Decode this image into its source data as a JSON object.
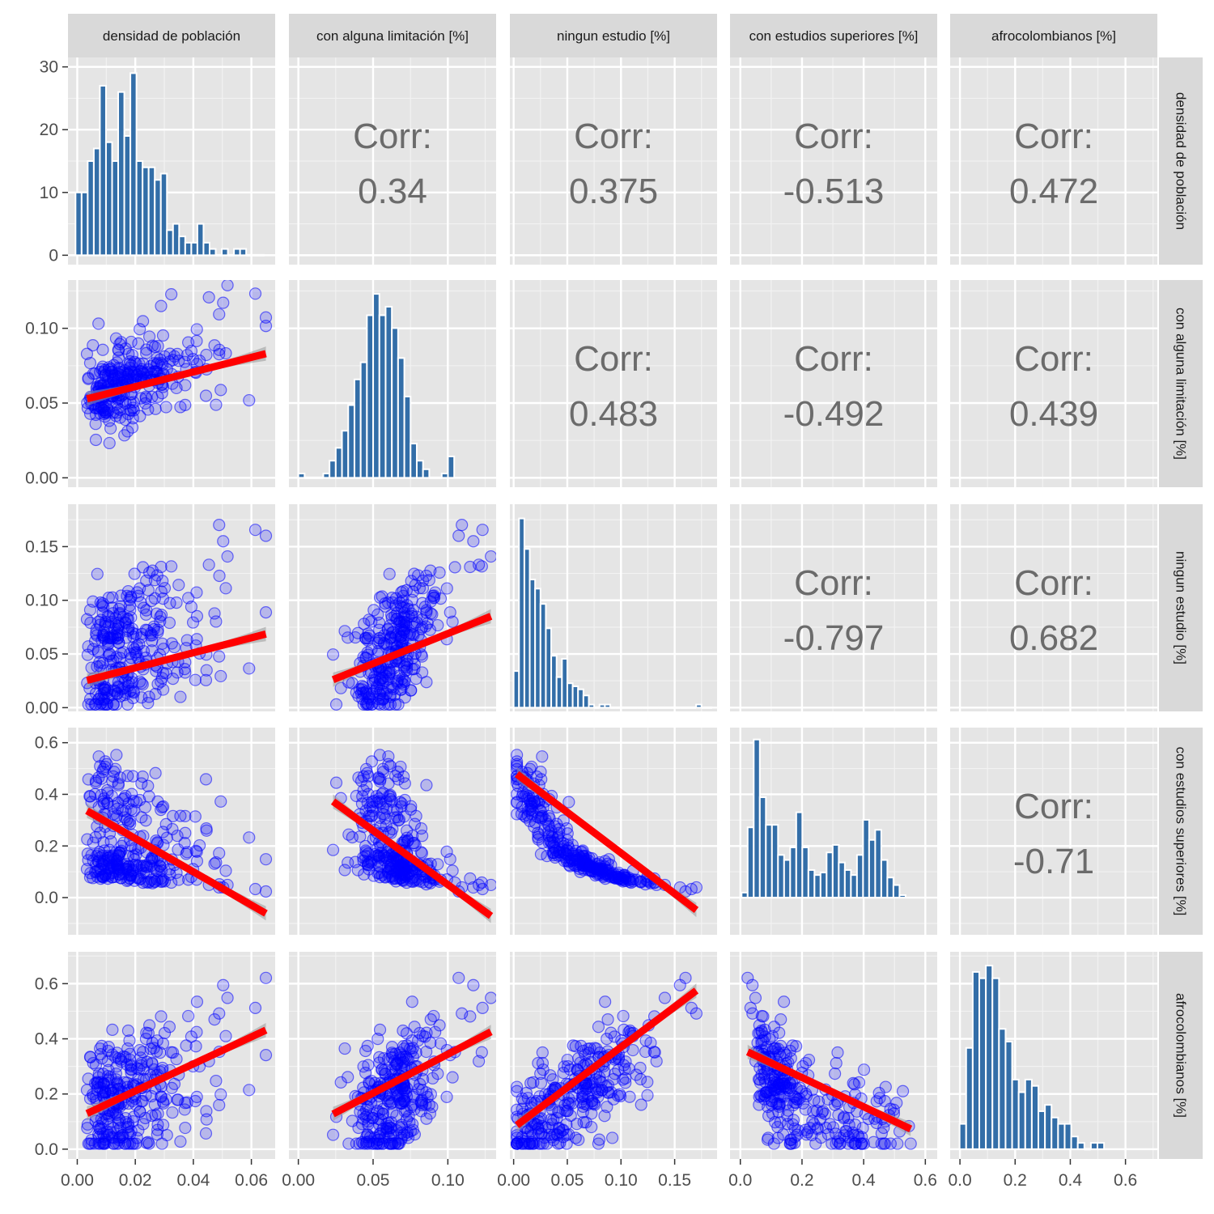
{
  "chart_data": {
    "type": "scatter-matrix",
    "variables": [
      "densidad de población",
      "con alguna limitación [%]",
      "ningun estudio [%]",
      "con estudios superiores [%]",
      "afrocolombianos [%]"
    ],
    "corr_label": "Corr:",
    "correlations": [
      {
        "row": 0,
        "col": 1,
        "value": "0.34"
      },
      {
        "row": 0,
        "col": 2,
        "value": "0.375"
      },
      {
        "row": 0,
        "col": 3,
        "value": "-0.513"
      },
      {
        "row": 0,
        "col": 4,
        "value": "0.472"
      },
      {
        "row": 1,
        "col": 2,
        "value": "0.483"
      },
      {
        "row": 1,
        "col": 3,
        "value": "-0.492"
      },
      {
        "row": 1,
        "col": 4,
        "value": "0.439"
      },
      {
        "row": 2,
        "col": 3,
        "value": "-0.797"
      },
      {
        "row": 2,
        "col": 4,
        "value": "0.682"
      },
      {
        "row": 3,
        "col": 4,
        "value": "-0.71"
      }
    ],
    "x_axes": [
      {
        "range": [
          -0.0032,
          0.0682
        ],
        "ticks": [
          0.0,
          0.02,
          0.04,
          0.06
        ],
        "tick_labels": [
          "0.00",
          "0.02",
          "0.04",
          "0.06"
        ]
      },
      {
        "range": [
          -0.0063,
          0.1323
        ],
        "ticks": [
          0.0,
          0.05,
          0.1
        ],
        "tick_labels": [
          "0.00",
          "0.05",
          "0.10"
        ]
      },
      {
        "range": [
          -0.0035,
          0.1895
        ],
        "ticks": [
          0.0,
          0.05,
          0.1,
          0.15
        ],
        "tick_labels": [
          "0.00",
          "0.05",
          "0.10",
          "0.15"
        ]
      },
      {
        "range": [
          -0.0335,
          0.6385
        ],
        "ticks": [
          0.0,
          0.2,
          0.4,
          0.6
        ],
        "tick_labels": [
          "0.0",
          "0.2",
          "0.4",
          "0.6"
        ]
      },
      {
        "range": [
          -0.0355,
          0.7155
        ],
        "ticks": [
          0.0,
          0.2,
          0.4,
          0.6
        ],
        "tick_labels": [
          "0.0",
          "0.2",
          "0.4",
          "0.6"
        ]
      }
    ],
    "y_axes": [
      {
        "range": [
          -1.5,
          31.5
        ],
        "ticks": [
          0,
          10,
          20,
          30
        ],
        "tick_labels": [
          "0",
          "10",
          "20",
          "30"
        ]
      },
      {
        "range": [
          -0.0063,
          0.1323
        ],
        "ticks": [
          0.0,
          0.05,
          0.1
        ],
        "tick_labels": [
          "0.00",
          "0.05",
          "0.10"
        ]
      },
      {
        "range": [
          -0.0035,
          0.1895
        ],
        "ticks": [
          0.0,
          0.05,
          0.1,
          0.15
        ],
        "tick_labels": [
          "0.00",
          "0.05",
          "0.10",
          "0.15"
        ]
      },
      {
        "range": [
          -0.144,
          0.6585
        ],
        "ticks": [
          0.0,
          0.2,
          0.4,
          0.6
        ],
        "tick_labels": [
          "0.0",
          "0.2",
          "0.4",
          "0.6"
        ]
      },
      {
        "range": [
          -0.0355,
          0.7155
        ],
        "ticks": [
          0.0,
          0.2,
          0.4,
          0.6
        ],
        "tick_labels": [
          "0.0",
          "0.2",
          "0.4",
          "0.6"
        ]
      }
    ],
    "histograms": [
      {
        "var": 0,
        "bin_start": -0.0006,
        "bin_width": 0.0021,
        "counts": [
          10,
          10,
          15,
          17,
          27,
          18,
          15,
          26,
          19,
          29,
          15,
          14,
          14,
          12,
          13,
          4,
          5,
          3,
          2,
          2,
          5,
          2,
          1,
          0,
          1,
          0,
          1,
          1,
          0,
          0,
          0
        ],
        "count_scale": 1
      },
      {
        "var": 1,
        "bin_start": 0.0,
        "bin_width": 0.00417,
        "counts": [
          1,
          0,
          0,
          0,
          1,
          4,
          7,
          11,
          17,
          23,
          27,
          38,
          43,
          38,
          40,
          35,
          28,
          19,
          8,
          4,
          2,
          0,
          0,
          1,
          5
        ],
        "count_scale": 1
      },
      {
        "var": 2,
        "bin_start": 0.0,
        "bin_width": 0.005,
        "counts": [
          12,
          62,
          52,
          42,
          39,
          34,
          26,
          17,
          10,
          16,
          8,
          7,
          6,
          4,
          1,
          0,
          1,
          1,
          0,
          0,
          0,
          0,
          0,
          0,
          0,
          0,
          0,
          0,
          0,
          0,
          0,
          0,
          0,
          0,
          1,
          0,
          0
        ],
        "count_scale": 1
      },
      {
        "var": 3,
        "bin_start": 0.004,
        "bin_width": 0.0197,
        "counts": [
          2,
          28,
          63,
          40,
          29,
          29,
          17,
          15,
          20,
          34,
          20,
          11,
          9,
          10,
          18,
          21,
          14,
          11,
          9,
          17,
          31,
          23,
          27,
          15,
          8,
          5,
          1
        ],
        "count_scale": 1
      },
      {
        "var": 4,
        "bin_start": -0.0013,
        "bin_width": 0.0238,
        "counts": [
          4,
          16,
          28,
          27,
          29,
          27,
          19,
          17,
          11,
          9,
          11,
          10,
          6,
          7,
          5,
          4,
          4,
          2,
          1,
          0,
          1,
          1
        ],
        "count_scale": 1
      }
    ],
    "fits": [
      {
        "row": 1,
        "col": 0,
        "intercept": 0.0512,
        "slope": 0.49
      },
      {
        "row": 2,
        "col": 0,
        "intercept": 0.0231,
        "slope": 0.7
      },
      {
        "row": 2,
        "col": 1,
        "intercept": 0.013,
        "slope": 0.56
      },
      {
        "row": 3,
        "col": 0,
        "intercept": 0.358,
        "slope": -6.45
      },
      {
        "row": 3,
        "col": 1,
        "intercept": 0.47,
        "slope": -4.2
      },
      {
        "row": 3,
        "col": 2,
        "intercept": 0.488,
        "slope": -3.15
      },
      {
        "row": 4,
        "col": 0,
        "intercept": 0.113,
        "slope": 4.9
      },
      {
        "row": 4,
        "col": 1,
        "intercept": 0.062,
        "slope": 2.82
      },
      {
        "row": 4,
        "col": 2,
        "intercept": 0.078,
        "slope": 2.92
      },
      {
        "row": 4,
        "col": 3,
        "intercept": 0.365,
        "slope": -0.528
      }
    ],
    "n_points": 300,
    "point_seed": 20240517,
    "grid": true,
    "colors": {
      "point": "#0000ff",
      "fit_line": "#ff0000",
      "confidence_band": "#999999",
      "histogram_bar": "#336ea8",
      "panel_background": "#e5e5e5",
      "strip_background": "#d9d9d9",
      "correlation_text": "#6b6b6b"
    }
  }
}
